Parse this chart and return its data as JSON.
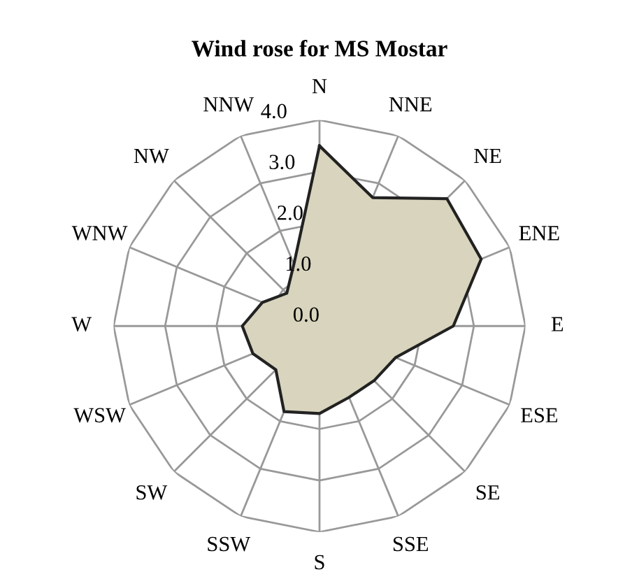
{
  "chart_data": {
    "type": "radar",
    "title": "Wind rose for MS Mostar",
    "categories": [
      "N",
      "NNE",
      "NE",
      "ENE",
      "E",
      "ESE",
      "SE",
      "SSE",
      "S",
      "SSW",
      "SW",
      "WSW",
      "W",
      "WNW",
      "NW",
      "NNW"
    ],
    "series": [
      {
        "color": "#d8d4bd",
        "values": [
          3.5,
          2.7,
          3.5,
          3.4,
          2.6,
          1.6,
          1.5,
          1.5,
          1.7,
          1.8,
          1.2,
          1.4,
          1.5,
          1.2,
          0.9,
          1.3
        ]
      }
    ],
    "ylim": [
      0,
      4
    ],
    "yticks": [
      {
        "value": 0,
        "label": "0.0"
      },
      {
        "value": 1,
        "label": "1.0"
      },
      {
        "value": 2,
        "label": "2.0"
      },
      {
        "value": 3,
        "label": "3.0"
      },
      {
        "value": 4,
        "label": "4.0"
      }
    ],
    "grid": true,
    "marker": "none"
  }
}
